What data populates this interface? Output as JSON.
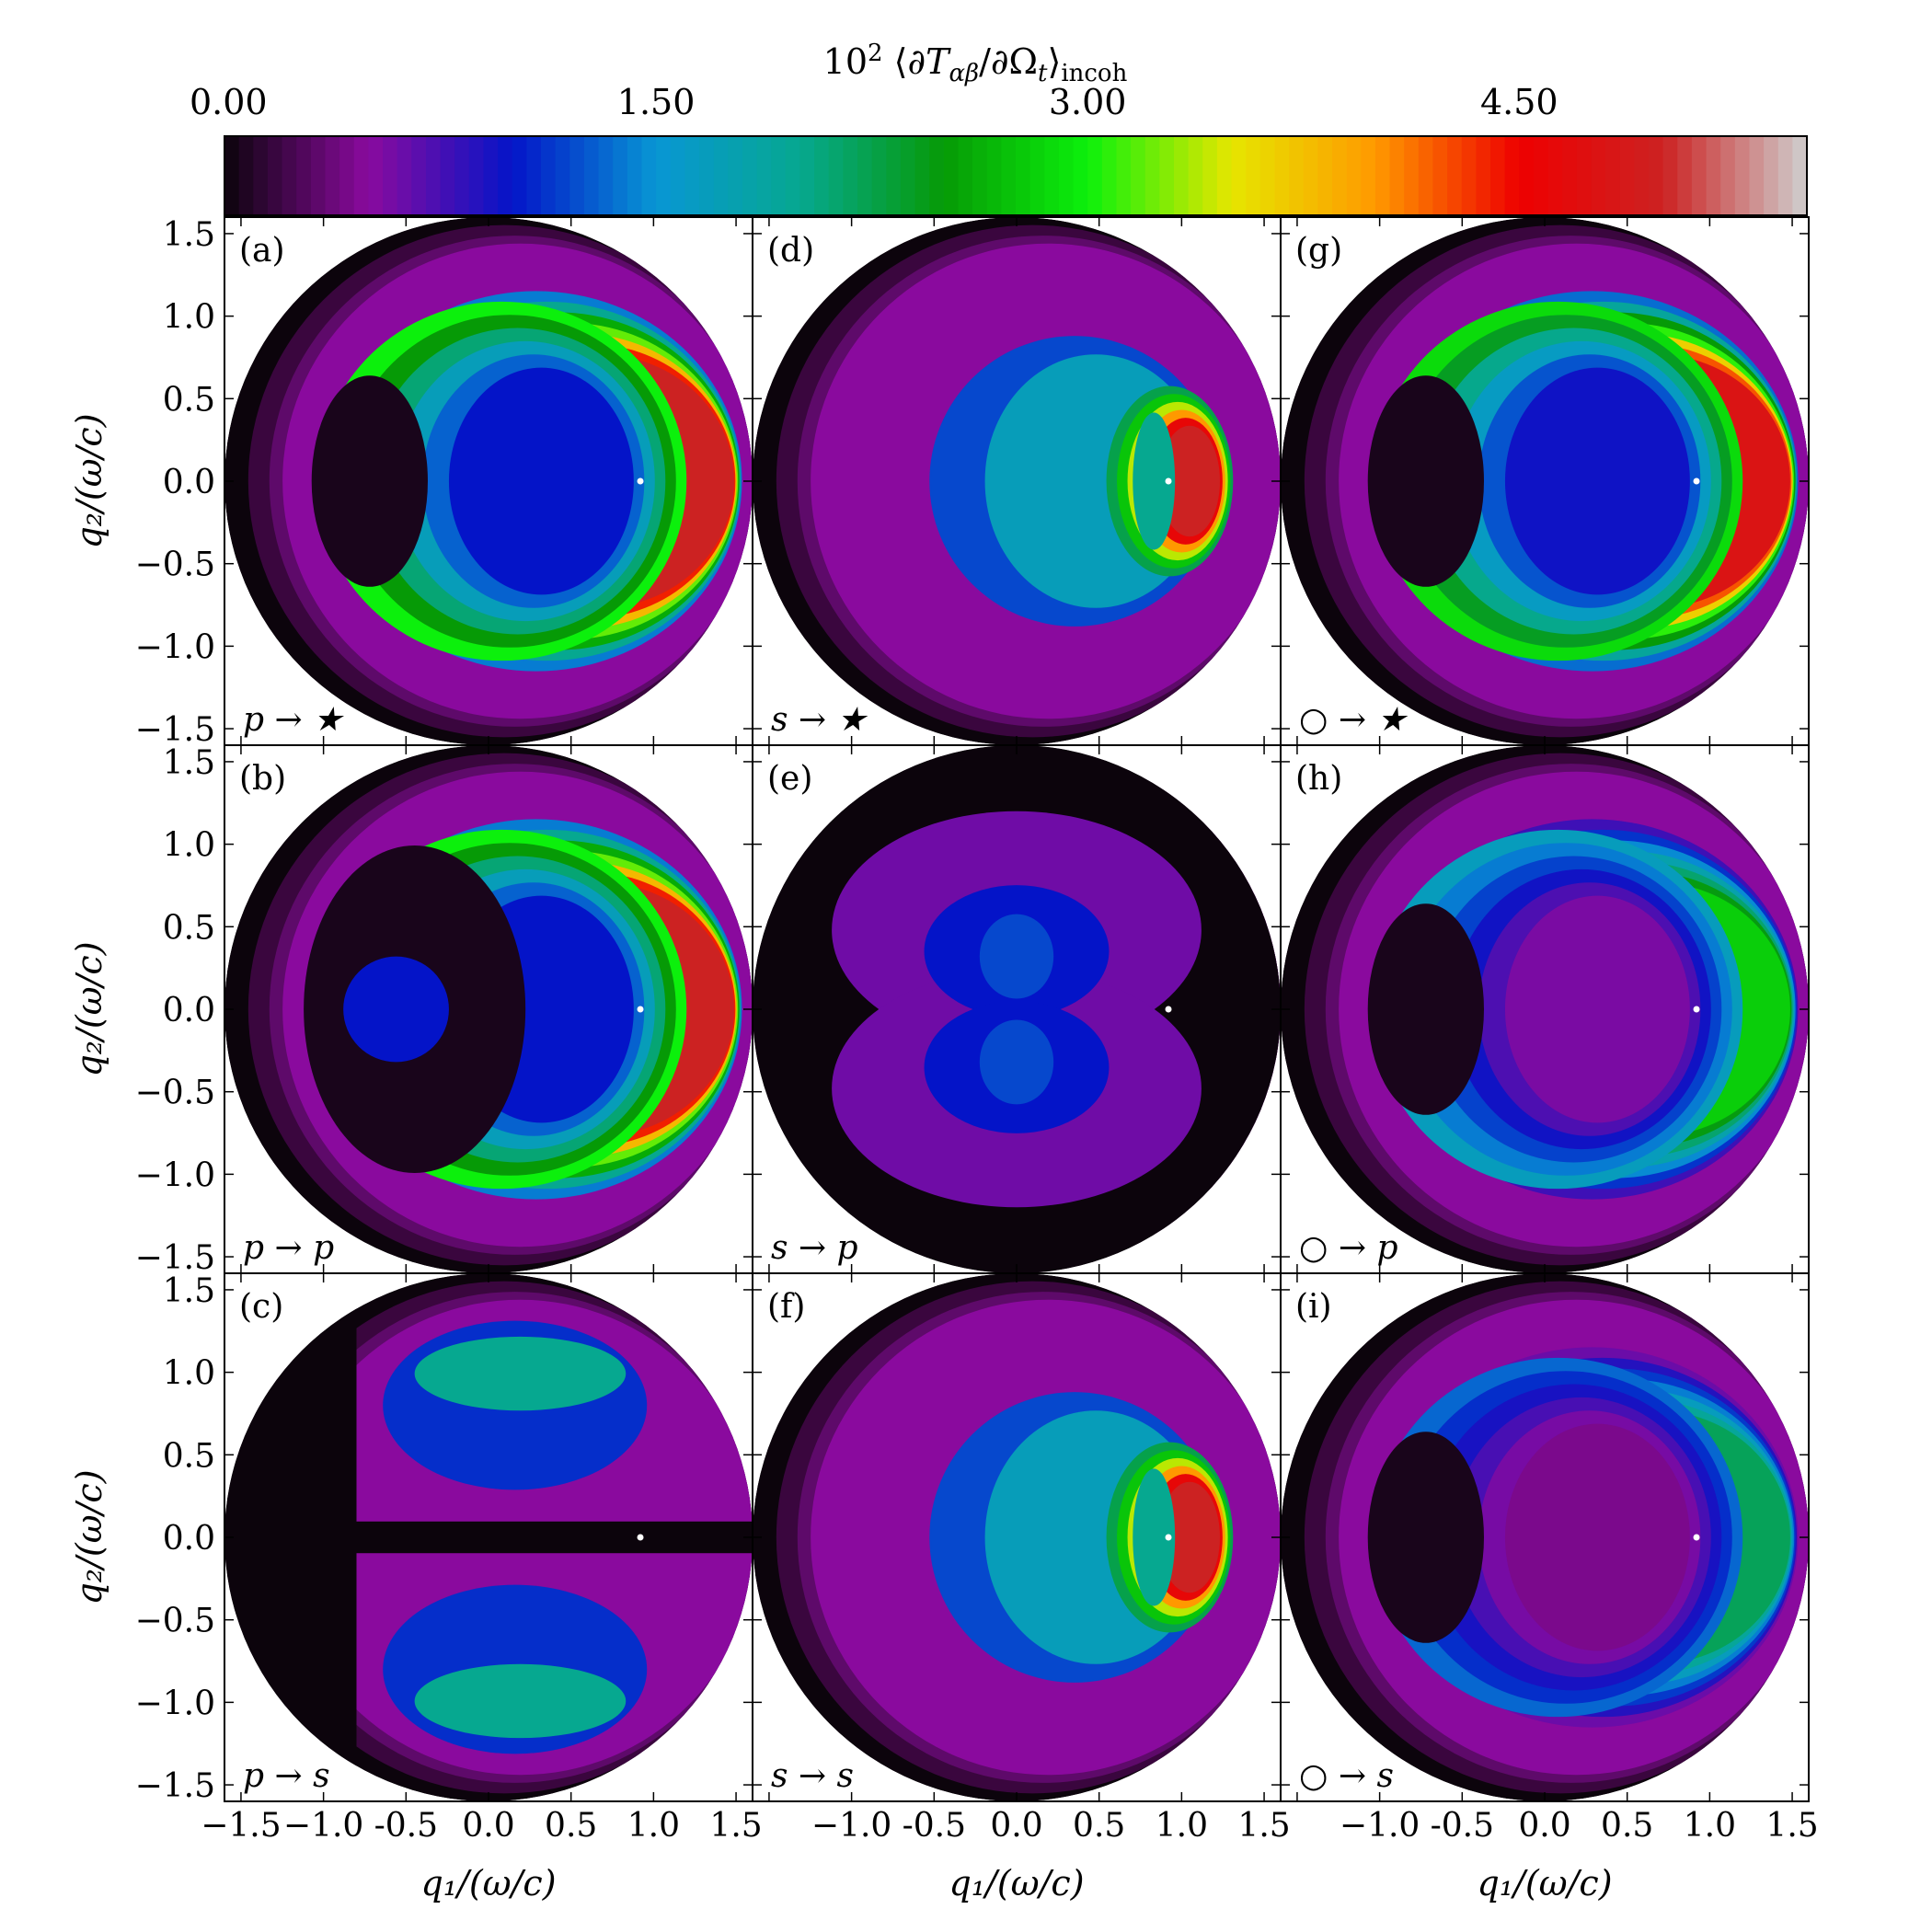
{
  "chart_data": {
    "type": "heatmap",
    "title": "",
    "colorbar": {
      "label": "10² ⟨∂T_αβ/∂Ω_t⟩_incoh",
      "ticks": [
        "0.00",
        "1.50",
        "3.00",
        "4.50"
      ],
      "tick_values": [
        0.0,
        1.5,
        3.0,
        4.5
      ],
      "range": [
        0,
        5.5
      ],
      "colormap": "nipy_spectral",
      "colors": [
        "#0c040c",
        "#8a0a9e",
        "#0414c8",
        "#0896d4",
        "#06a890",
        "#069a06",
        "#0cf00c",
        "#e6e600",
        "#ff9900",
        "#ee0000",
        "#cc2222",
        "#cfcfcf"
      ]
    },
    "xlabel": "q₁/(ω/c)",
    "ylabel": "q₂/(ω/c)",
    "xlim": [
      -1.6,
      1.6
    ],
    "ylim": [
      -1.6,
      1.6
    ],
    "xticks": [
      "−1.5",
      "−1.0",
      "-0.5",
      "0.0",
      "0.5",
      "1.0",
      "1.5"
    ],
    "xticks_shared": [
      "−1.0",
      "-0.5",
      "0.0",
      "0.5",
      "1.0",
      "1.5"
    ],
    "yticks": [
      "1.5",
      "1.0",
      "0.5",
      "0.0",
      "−0.5",
      "−1.0",
      "−1.5"
    ],
    "ytick_values": [
      1.5,
      1.0,
      0.5,
      0.0,
      -0.5,
      -1.0,
      -1.5
    ],
    "disk_radius": 1.6,
    "incident_marker": {
      "q1": 0.92,
      "q2": 0.0,
      "color": "#ffffff"
    },
    "panels": [
      {
        "id": "(a)",
        "channel": "p → ★",
        "row": 0,
        "col": 0,
        "peak": 5.0,
        "pattern": "crescent"
      },
      {
        "id": "(d)",
        "channel": "s → ★",
        "row": 0,
        "col": 1,
        "peak": 5.0,
        "pattern": "small-crescent"
      },
      {
        "id": "(g)",
        "channel": "○ → ★",
        "row": 0,
        "col": 2,
        "peak": 4.8,
        "pattern": "crescent"
      },
      {
        "id": "(b)",
        "channel": "p → p",
        "row": 1,
        "col": 0,
        "peak": 5.0,
        "pattern": "crescent-lobed"
      },
      {
        "id": "(e)",
        "channel": "s → p",
        "row": 1,
        "col": 1,
        "peak": 1.2,
        "pattern": "dipole-vertical"
      },
      {
        "id": "(h)",
        "channel": "○ → p",
        "row": 1,
        "col": 2,
        "peak": 2.8,
        "pattern": "crescent"
      },
      {
        "id": "(c)",
        "channel": "p → s",
        "row": 2,
        "col": 0,
        "peak": 2.0,
        "pattern": "split-crescent"
      },
      {
        "id": "(f)",
        "channel": "s → s",
        "row": 2,
        "col": 1,
        "peak": 5.0,
        "pattern": "small-crescent"
      },
      {
        "id": "(i)",
        "channel": "○ → s",
        "row": 2,
        "col": 2,
        "peak": 2.2,
        "pattern": "crescent"
      }
    ]
  }
}
